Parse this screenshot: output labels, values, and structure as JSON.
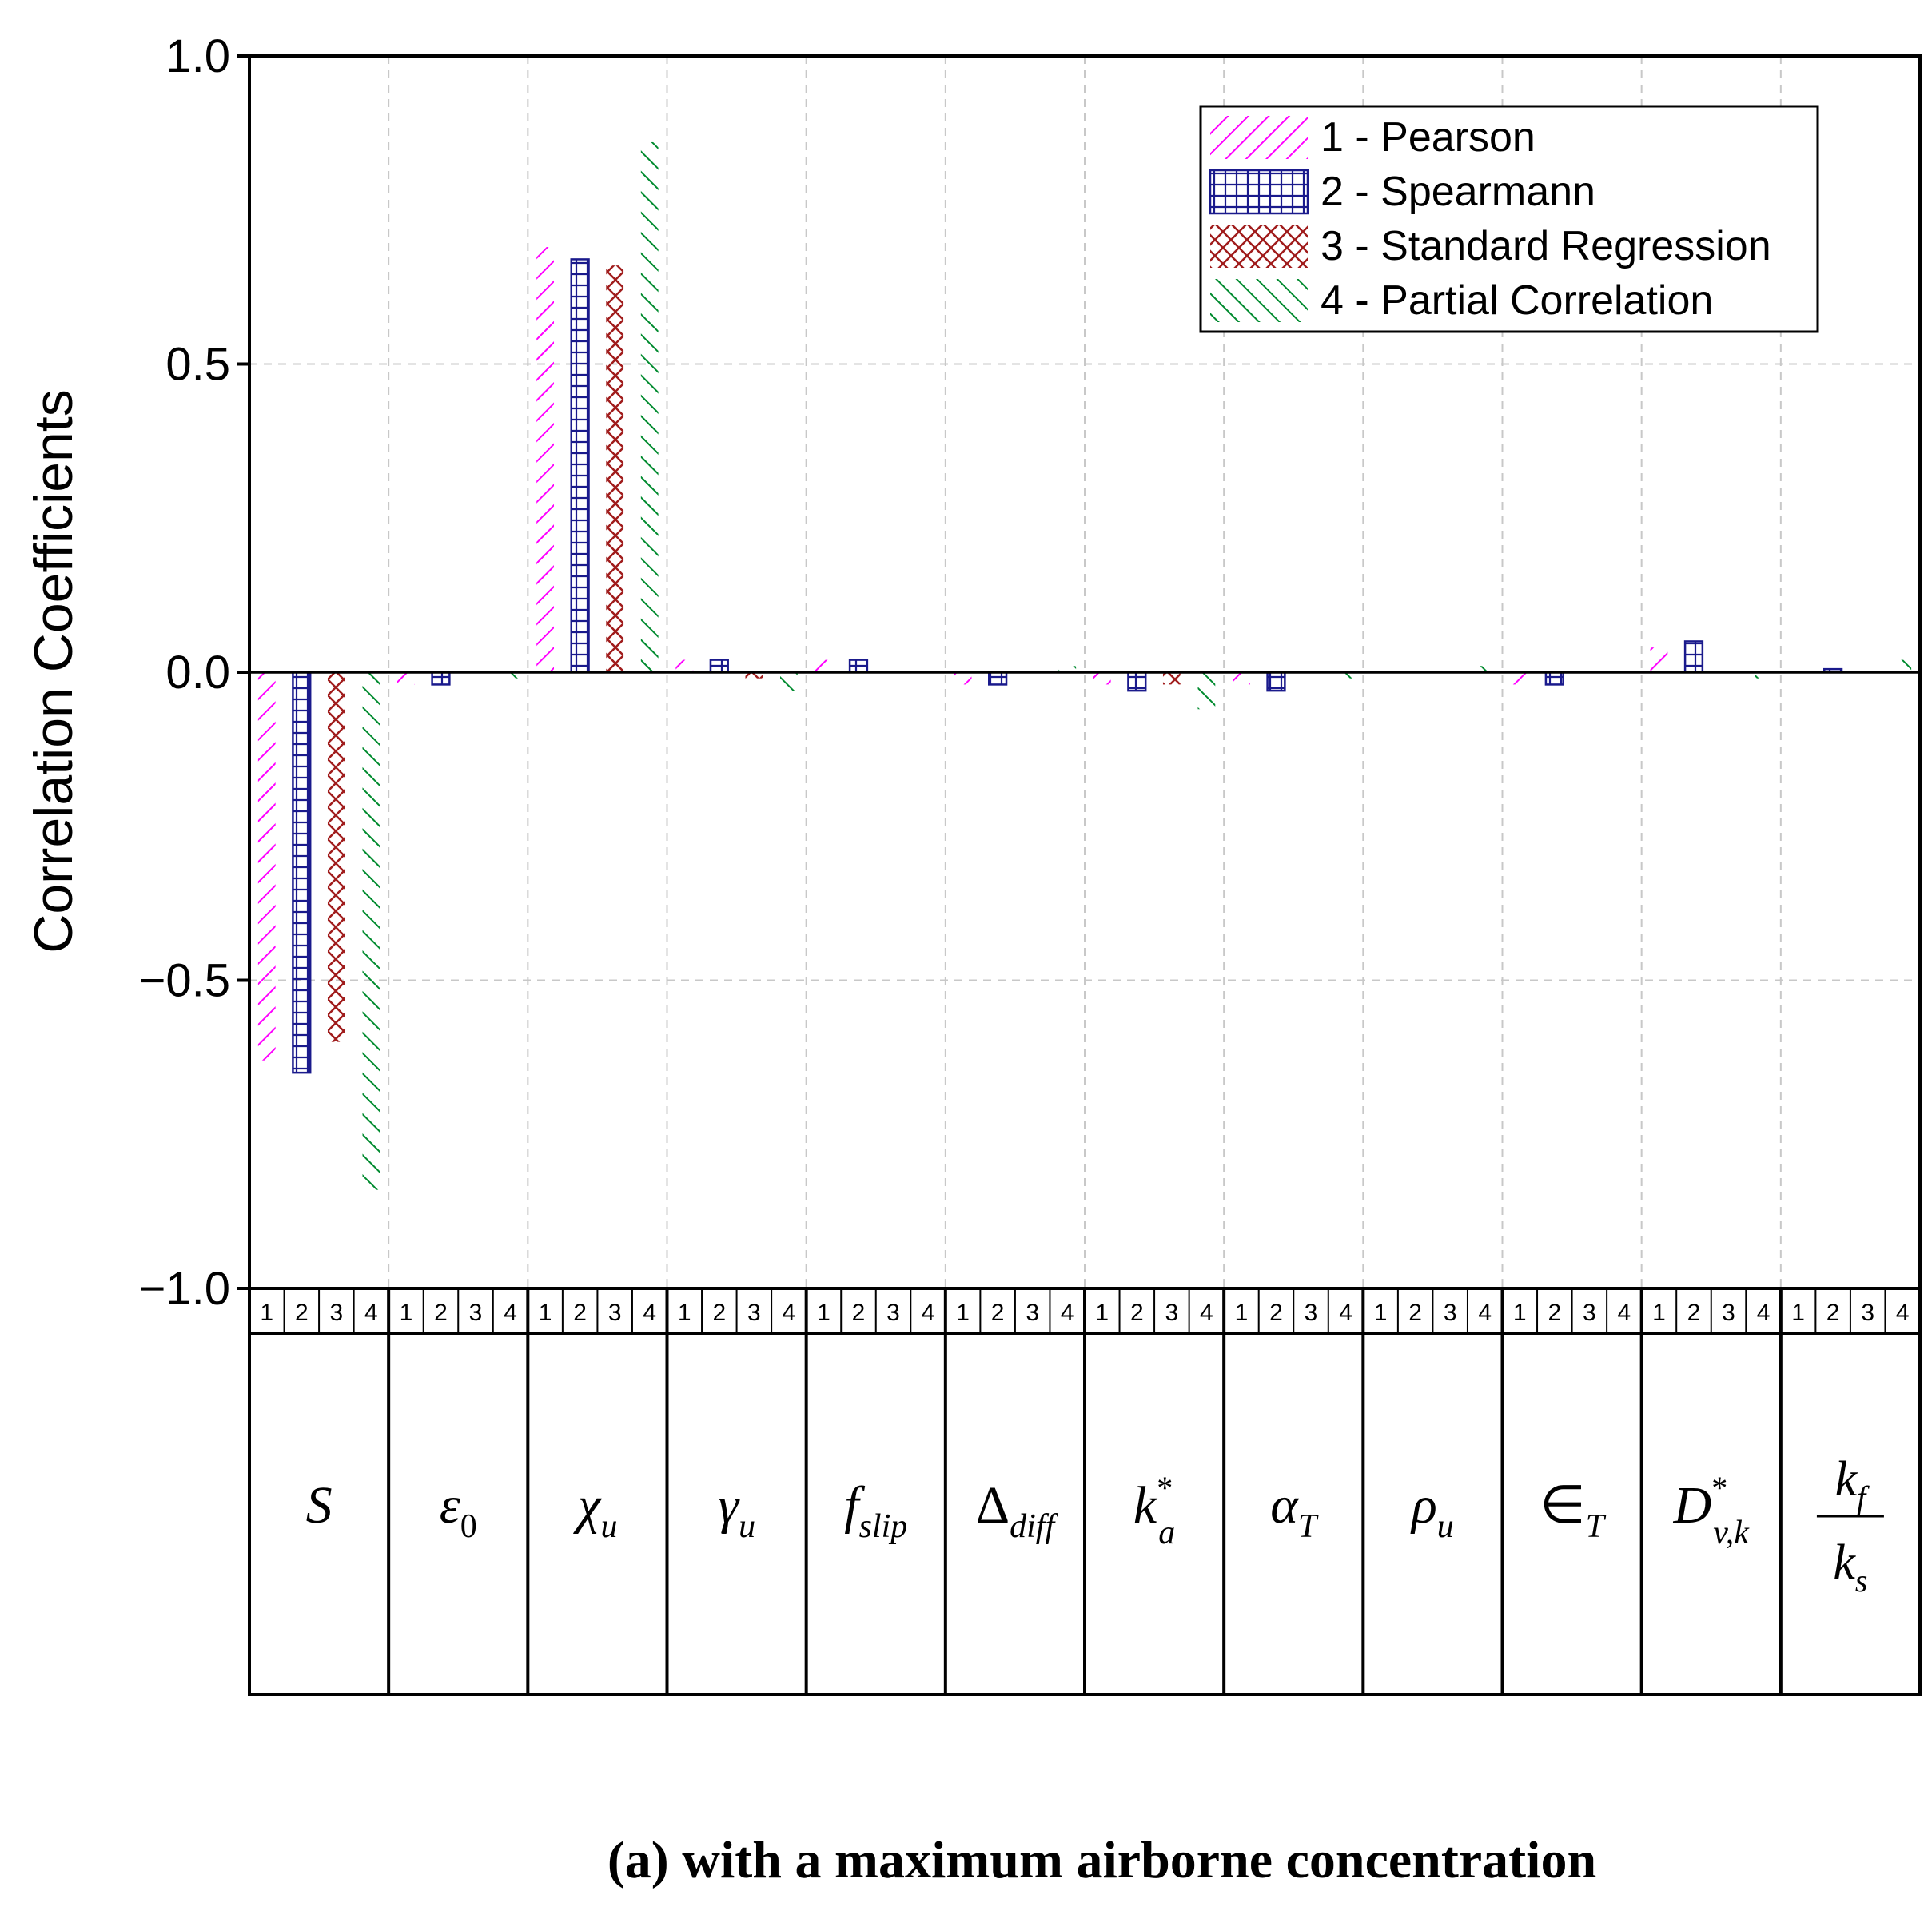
{
  "chart_data": {
    "type": "bar",
    "ylabel": "Correlation Coefficients",
    "ylim": [
      -1.0,
      1.0
    ],
    "yticks": [
      1.0,
      0.5,
      0.0,
      -0.5,
      -1.0
    ],
    "ytick_labels": [
      "1.0",
      "0.5",
      "0.0",
      "−0.5",
      "−1.0"
    ],
    "grid": true,
    "legend_position": "top-right",
    "bar_index_labels": [
      "1",
      "2",
      "3",
      "4"
    ],
    "categories": [
      "S",
      "ε0",
      "χu",
      "γu",
      "fslip",
      "Δdiff",
      "k*a",
      "αT",
      "ρu",
      "∈T",
      "D*v,k",
      "kf/ks"
    ],
    "category_labels": [
      {
        "base": "S",
        "sub": "",
        "sup": ""
      },
      {
        "base": "ε",
        "sub": "0",
        "sup": ""
      },
      {
        "base": "χ",
        "sub": "u",
        "sup": ""
      },
      {
        "base": "γ",
        "sub": "u",
        "sup": ""
      },
      {
        "base": "f",
        "sub": "slip",
        "sup": ""
      },
      {
        "base": "Δ",
        "sub": "diff",
        "sup": ""
      },
      {
        "base": "k",
        "sub": "a",
        "sup": "*"
      },
      {
        "base": "α",
        "sub": "T",
        "sup": ""
      },
      {
        "base": "ρ",
        "sub": "u",
        "sup": ""
      },
      {
        "base": "∈",
        "sub": "T",
        "sup": ""
      },
      {
        "base": "D",
        "sub": "v,k",
        "sup": "*"
      },
      {
        "base": "k",
        "sub": "f",
        "sup": "",
        "den_base": "k",
        "den_sub": "s"
      }
    ],
    "series": [
      {
        "name": "1 - Pearson",
        "color": "#ff00ff",
        "pattern": "forward-hatch",
        "values": [
          -0.63,
          -0.02,
          0.69,
          0.02,
          0.02,
          -0.02,
          -0.02,
          -0.02,
          0.0,
          -0.02,
          0.04,
          0.0
        ]
      },
      {
        "name": "2 - Spearmann",
        "color": "#1a1a8c",
        "pattern": "grid",
        "values": [
          -0.65,
          -0.02,
          0.67,
          0.02,
          0.02,
          -0.02,
          -0.03,
          -0.03,
          0.0,
          -0.02,
          0.05,
          0.005
        ]
      },
      {
        "name": "3 - Standard Regression",
        "color": "#a01c1c",
        "pattern": "crosshatch",
        "values": [
          -0.6,
          0.0,
          0.66,
          -0.01,
          0.0,
          0.0,
          -0.02,
          0.0,
          0.0,
          0.0,
          0.0,
          0.0
        ]
      },
      {
        "name": "4 - Partial Correlation",
        "color": "#008a2e",
        "pattern": "back-hatch",
        "values": [
          -0.84,
          -0.01,
          0.86,
          -0.03,
          0.0,
          0.01,
          -0.06,
          -0.01,
          0.01,
          0.0,
          -0.01,
          0.02
        ]
      }
    ]
  },
  "caption": "(a) with a maximum airborne concentration"
}
